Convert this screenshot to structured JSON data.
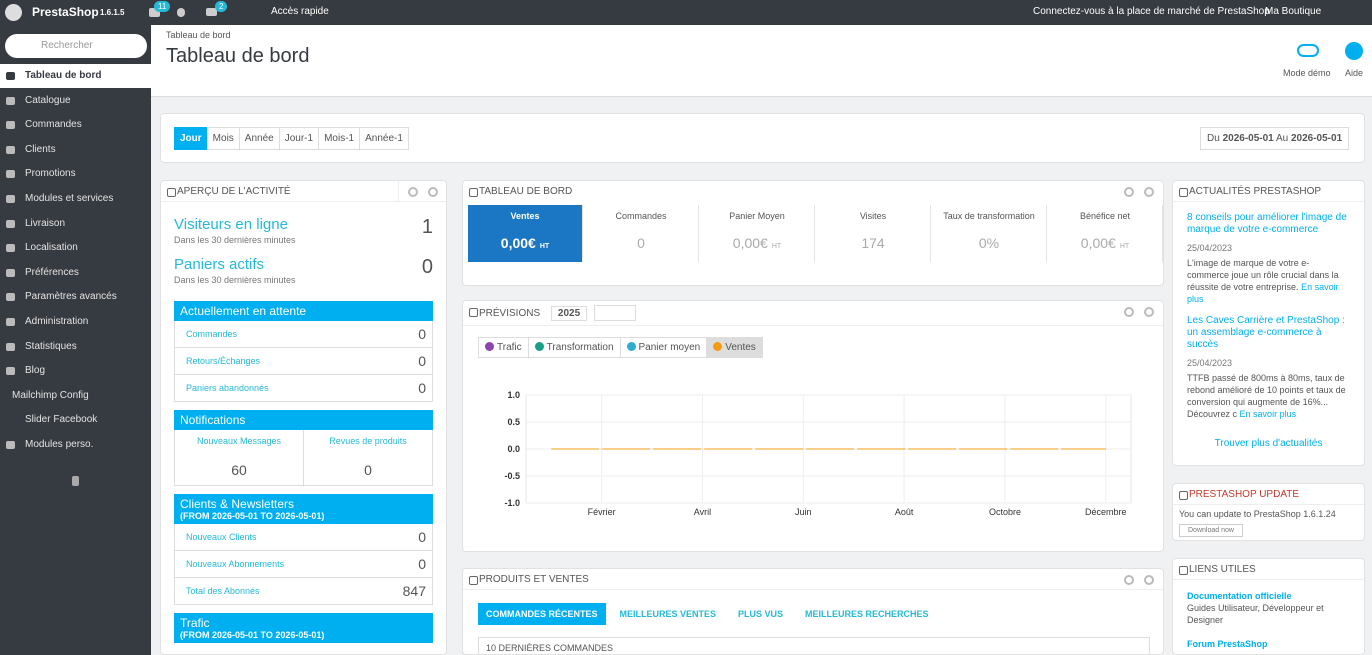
{
  "header": {
    "brand": "PrestaShop",
    "version": "1.6.1.5",
    "cart_badge": 11,
    "mail_badge": 2,
    "quick_access": "Accès rapide",
    "marketplace": "Connectez-vous à la place de marché de PrestaShop",
    "shop": "Ma Boutique"
  },
  "sidebar": {
    "search_placeholder": "Rechercher",
    "items": [
      "Tableau de bord",
      "Catalogue",
      "Commandes",
      "Clients",
      "Promotions",
      "Modules et services",
      "Livraison",
      "Localisation",
      "Préférences",
      "Paramètres avancés",
      "Administration",
      "Statistiques",
      "Blog",
      "Mailchimp Config",
      "Slider Facebook",
      "Modules perso."
    ]
  },
  "page": {
    "breadcrumb": "Tableau de bord",
    "title": "Tableau de bord",
    "demo": "Mode démo",
    "help": "Aide"
  },
  "periods": [
    "Jour",
    "Mois",
    "Année",
    "Jour-1",
    "Mois-1",
    "Année-1"
  ],
  "date_range": {
    "from_label": "Du",
    "from": "2026-05-01",
    "to_label": "Au",
    "to": "2026-05-01"
  },
  "activity": {
    "title": "APERÇU DE L'ACTIVITÉ",
    "online_visitors": {
      "label": "Visiteurs en ligne",
      "sub": "Dans les 30 dernières minutes",
      "value": 1
    },
    "active_carts": {
      "label": "Paniers actifs",
      "sub": "Dans les 30 dernières minutes",
      "value": 0
    },
    "pending": {
      "title": "Actuellement en attente",
      "rows": [
        {
          "label": "Commandes",
          "value": 0
        },
        {
          "label": "Retours/Échanges",
          "value": 0
        },
        {
          "label": "Paniers abandonnés",
          "value": 0
        }
      ]
    },
    "notifications": {
      "title": "Notifications",
      "items": [
        {
          "label": "Nouveaux Messages",
          "value": 60
        },
        {
          "label": "Revues de produits",
          "value": 0
        }
      ]
    },
    "customers": {
      "title": "Clients & Newsletters",
      "subtitle": "(FROM 2026-05-01 TO 2026-05-01)",
      "rows": [
        {
          "label": "Nouveaux Clients",
          "value": 0
        },
        {
          "label": "Nouveaux Abonnements",
          "value": 0
        },
        {
          "label": "Total des Abonnés",
          "value": 847
        }
      ]
    },
    "traffic": {
      "title": "Trafic",
      "subtitle": "(FROM 2026-05-01 TO 2026-05-01)"
    }
  },
  "dashboard": {
    "title": "TABLEAU DE BORD",
    "kpis": [
      {
        "label": "Ventes",
        "value": "0,00€",
        "suffix": "HT"
      },
      {
        "label": "Commandes",
        "value": 0
      },
      {
        "label": "Panier Moyen",
        "value": "0,00€",
        "suffix": "HT"
      },
      {
        "label": "Visites",
        "value": 174
      },
      {
        "label": "Taux de transformation",
        "value": "0%"
      },
      {
        "label": "Bénéfice net",
        "value": "0,00€",
        "suffix": "HT"
      }
    ]
  },
  "forecast": {
    "title": "PRÉVISIONS",
    "year": 2025,
    "chart": {
      "type": "line",
      "categories": [
        null,
        "Février",
        null,
        "Avril",
        null,
        "Juin",
        null,
        "Août",
        null,
        "Octobre",
        null,
        "Décembre"
      ],
      "series": [
        {
          "name": "Trafic",
          "color": "#8e44ad",
          "active": false
        },
        {
          "name": "Transformation",
          "color": "#16a085",
          "active": false
        },
        {
          "name": "Panier moyen",
          "color": "#2eacce",
          "active": false
        },
        {
          "name": "Ventes",
          "color": "#f39c12",
          "active": true,
          "values": [
            0,
            0,
            0,
            0,
            0,
            0,
            0,
            0,
            0,
            0,
            0,
            0
          ]
        }
      ],
      "ylim": [
        -1,
        1
      ],
      "yticks": [
        {
          "value": -1,
          "label": "-1.0"
        },
        {
          "value": -0.5,
          "label": "-0.5"
        },
        {
          "value": 0,
          "label": "0.0"
        },
        {
          "value": 0.5,
          "label": "0.5"
        },
        {
          "value": 1,
          "label": "1.0"
        }
      ],
      "grid": true
    }
  },
  "products": {
    "title": "PRODUITS ET VENTES",
    "tabs": [
      "COMMANDES RÉCENTES",
      "MEILLEURES VENTES",
      "PLUS VUS",
      "MEILLEURES RECHERCHES"
    ],
    "subheading": "10 DERNIÈRES COMMANDES"
  },
  "news": {
    "title": "ACTUALITÉS PRESTASHOP",
    "items": [
      {
        "title": "8 conseils pour améliorer l'image de marque de votre e-commerce",
        "date": "25/04/2023",
        "text": "L'image de marque de votre e-commerce joue un rôle crucial dans la réussite de votre entreprise.",
        "more": "En savoir plus"
      },
      {
        "title": "Les Caves Carrière et PrestaShop : un assemblage e-commerce à succès",
        "date": "25/04/2023",
        "text": "TTFB  passé de 800ms à 80ms, taux de rebond amélioré de 10 points et taux de conversion qui augmente de 16%... Découvrez c",
        "more": "En savoir plus"
      }
    ],
    "more_news": "Trouver plus d'actualités"
  },
  "update": {
    "title": "PRESTASHOP UPDATE",
    "text": "You can update to PrestaShop 1.6.1.24",
    "button": "Download now"
  },
  "links": {
    "title": "LIENS UTILES",
    "items": [
      {
        "title": "Documentation officielle",
        "text": "Guides Utilisateur, Développeur et Designer"
      },
      {
        "title": "Forum PrestaShop"
      }
    ]
  }
}
